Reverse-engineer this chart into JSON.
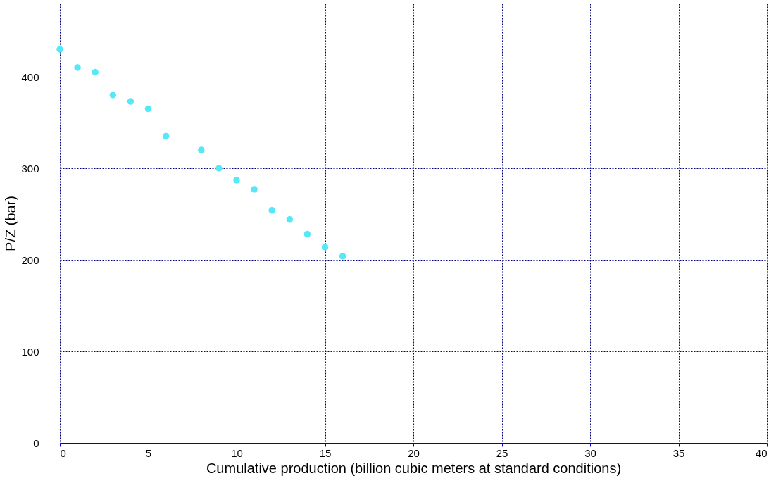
{
  "chart_data": {
    "type": "scatter",
    "xlabel": "Cumulative production (billion cubic meters at standard conditions)",
    "ylabel": "P/Z (bar)",
    "x": [
      0,
      1,
      2,
      3,
      4,
      5,
      6,
      8,
      9,
      10,
      11,
      12,
      13,
      14,
      15,
      16
    ],
    "series": [
      {
        "color": "#55e8f8",
        "values": [
          430,
          410,
          405,
          380,
          373,
          365,
          335,
          320,
          300,
          287,
          277,
          254,
          244,
          228,
          214,
          204
        ]
      }
    ],
    "xlim": [
      0,
      40
    ],
    "xticks": [
      0,
      5,
      10,
      15,
      20,
      25,
      30,
      35,
      40
    ],
    "ylim": [
      0,
      480
    ],
    "yticks": [
      0,
      100,
      200,
      300,
      400
    ],
    "grid": true,
    "marker": "circle",
    "legend": false
  }
}
